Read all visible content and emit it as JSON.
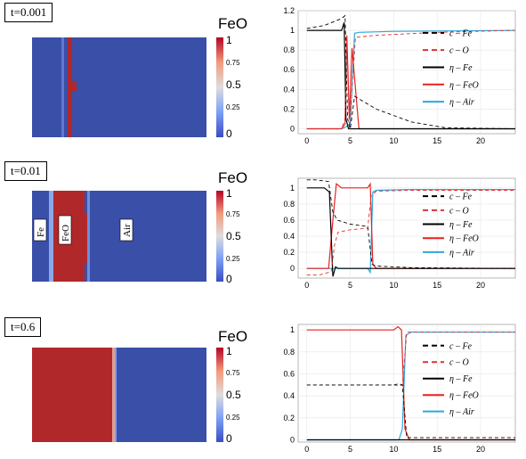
{
  "panels": [
    {
      "time_label": "t=0.001",
      "field": {
        "title": "FeO",
        "colorbar_ticks": [
          "1",
          "0.75",
          "0.5",
          "0.25",
          "0"
        ],
        "region_labels": []
      },
      "chart": {
        "ylim": [
          0,
          1.2
        ],
        "yticks": [
          "0",
          "0.2",
          "0.4",
          "0.6",
          "0.8",
          "1",
          "1.2"
        ]
      }
    },
    {
      "time_label": "t=0.01",
      "field": {
        "title": "FeO",
        "colorbar_ticks": [
          "1",
          "0.75",
          "0.5",
          "0.25",
          "0"
        ],
        "region_labels": [
          "Fe",
          "FeO",
          "Air"
        ]
      },
      "chart": {
        "ylim": [
          -0.1,
          1.1
        ],
        "yticks": [
          "0",
          "0.2",
          "0.4",
          "0.6",
          "0.8",
          "1"
        ]
      }
    },
    {
      "time_label": "t=0.6",
      "field": {
        "title": "FeO",
        "colorbar_ticks": [
          "1",
          "0.75",
          "0.5",
          "0.25",
          "0"
        ],
        "region_labels": []
      },
      "chart": {
        "ylim": [
          0,
          1.05
        ],
        "yticks": [
          "0",
          "0.2",
          "0.4",
          "0.6",
          "0.8",
          "1"
        ]
      }
    }
  ],
  "colors": {
    "field_blue": "#3a4fa8",
    "field_red": "#b0282a",
    "c_fe": "#000000",
    "c_o": "#e03030",
    "eta_fe": "#000000",
    "eta_feo": "#e82020",
    "eta_air": "#2aa8e0"
  },
  "chart_data": [
    {
      "type": "line",
      "xlim": [
        -1,
        24
      ],
      "ylim": [
        -0.05,
        1.2
      ],
      "xticks": [
        0,
        5,
        10,
        15,
        20
      ],
      "yticks": [
        0,
        0.2,
        0.4,
        0.6,
        0.8,
        1,
        1.2
      ],
      "legend": [
        "c – Fe",
        "c – O",
        "η – Fe",
        "η – FeO",
        "η – Air"
      ],
      "legend_position": "right",
      "series": [
        {
          "name": "c – Fe",
          "style": "dashed",
          "x": [
            0,
            2,
            4,
            4.4,
            4.7,
            5.0,
            5.5,
            8,
            12,
            16,
            24
          ],
          "y": [
            1.02,
            1.05,
            1.12,
            1.15,
            0.1,
            0.0,
            0.33,
            0.2,
            0.07,
            0.01,
            0.0
          ]
        },
        {
          "name": "c – O",
          "style": "dashed",
          "x": [
            0,
            4,
            4.4,
            4.6,
            4.9,
            5.2,
            5.6,
            8,
            15,
            24
          ],
          "y": [
            0.0,
            0.0,
            0.1,
            0.9,
            0.0,
            0.4,
            0.93,
            0.95,
            0.98,
            1.0
          ]
        },
        {
          "name": "η – Fe",
          "x": [
            0,
            3.5,
            4.0,
            4.3,
            4.5,
            4.8,
            5.2,
            6,
            24
          ],
          "y": [
            1.0,
            1.0,
            1.0,
            1.08,
            0.1,
            0.0,
            0.0,
            0.0,
            0.0
          ]
        },
        {
          "name": "η – FeO",
          "x": [
            0,
            4.0,
            4.4,
            4.6,
            4.9,
            5.2,
            6,
            24
          ],
          "y": [
            0.0,
            0.0,
            0.05,
            0.95,
            0.1,
            0.82,
            0.0,
            0.0
          ]
        },
        {
          "name": "η – Air",
          "x": [
            0,
            4.0,
            4.5,
            5.0,
            5.5,
            6,
            10,
            24
          ],
          "y": [
            0.0,
            0.0,
            0.02,
            0.05,
            0.97,
            0.98,
            0.99,
            1.0
          ]
        }
      ]
    },
    {
      "type": "line",
      "xlim": [
        -1,
        24
      ],
      "ylim": [
        -0.12,
        1.12
      ],
      "xticks": [
        0,
        5,
        10,
        15,
        20
      ],
      "yticks": [
        0,
        0.2,
        0.4,
        0.6,
        0.8,
        1
      ],
      "legend": [
        "c – Fe",
        "c – O",
        "η – Fe",
        "η – FeO",
        "η – Air"
      ],
      "legend_position": "right",
      "series": [
        {
          "name": "c – Fe",
          "style": "dashed",
          "x": [
            0,
            1,
            2.5,
            3.0,
            3.5,
            5,
            7.0,
            7.5,
            8,
            12,
            24
          ],
          "y": [
            1.1,
            1.1,
            1.08,
            0.7,
            0.6,
            0.55,
            0.52,
            0.05,
            0.03,
            0.01,
            0.0
          ]
        },
        {
          "name": "c – O",
          "style": "dashed",
          "x": [
            0,
            1.5,
            2.8,
            3.2,
            3.6,
            5,
            7.0,
            7.4,
            8,
            12,
            24
          ],
          "y": [
            -0.08,
            -0.08,
            -0.04,
            0.3,
            0.45,
            0.48,
            0.5,
            0.9,
            0.96,
            0.97,
            0.97
          ]
        },
        {
          "name": "η – Fe",
          "x": [
            0,
            2.0,
            2.6,
            3.0,
            3.3,
            3.6,
            24
          ],
          "y": [
            1.0,
            1.0,
            0.95,
            -0.1,
            0.02,
            0.0,
            0.0
          ]
        },
        {
          "name": "η – FeO",
          "x": [
            0,
            2.5,
            3.0,
            3.4,
            4.0,
            7.0,
            7.3,
            7.6,
            8,
            24
          ],
          "y": [
            0.0,
            0.0,
            0.6,
            1.05,
            1.0,
            1.0,
            1.05,
            0.05,
            0.0,
            0.0
          ]
        },
        {
          "name": "η – Air",
          "x": [
            0,
            7.0,
            7.3,
            7.6,
            8,
            12,
            24
          ],
          "y": [
            0.0,
            0.0,
            -0.05,
            0.95,
            0.97,
            0.98,
            0.98
          ]
        }
      ]
    },
    {
      "type": "line",
      "xlim": [
        -1,
        24
      ],
      "ylim": [
        -0.02,
        1.05
      ],
      "xticks": [
        0,
        5,
        10,
        15,
        20
      ],
      "yticks": [
        0,
        0.2,
        0.4,
        0.6,
        0.8,
        1
      ],
      "legend": [
        "c – Fe",
        "c – O",
        "η – Fe",
        "η – FeO",
        "η – Air"
      ],
      "legend_position": "right",
      "series": [
        {
          "name": "c – Fe",
          "style": "dashed",
          "x": [
            0,
            10,
            10.6,
            11.0,
            11.5,
            12,
            24
          ],
          "y": [
            0.5,
            0.5,
            0.51,
            0.5,
            0.02,
            0.02,
            0.02
          ]
        },
        {
          "name": "c – O",
          "style": "dashed",
          "x": [
            0,
            10,
            10.6,
            11.0,
            11.5,
            12,
            24
          ],
          "y": [
            0.5,
            0.5,
            0.49,
            0.5,
            0.98,
            0.98,
            0.98
          ]
        },
        {
          "name": "η – Fe",
          "x": [
            0,
            24
          ],
          "y": [
            0.0,
            0.0
          ]
        },
        {
          "name": "η – FeO",
          "x": [
            0,
            10,
            10.5,
            10.9,
            11.3,
            11.8,
            24
          ],
          "y": [
            1.0,
            1.0,
            1.03,
            1.0,
            0.1,
            0.0,
            0.0
          ]
        },
        {
          "name": "η – Air",
          "x": [
            0,
            10,
            10.6,
            11.0,
            11.4,
            12,
            24
          ],
          "y": [
            0.0,
            0.0,
            0.0,
            0.1,
            0.95,
            0.98,
            0.98
          ]
        }
      ]
    }
  ]
}
